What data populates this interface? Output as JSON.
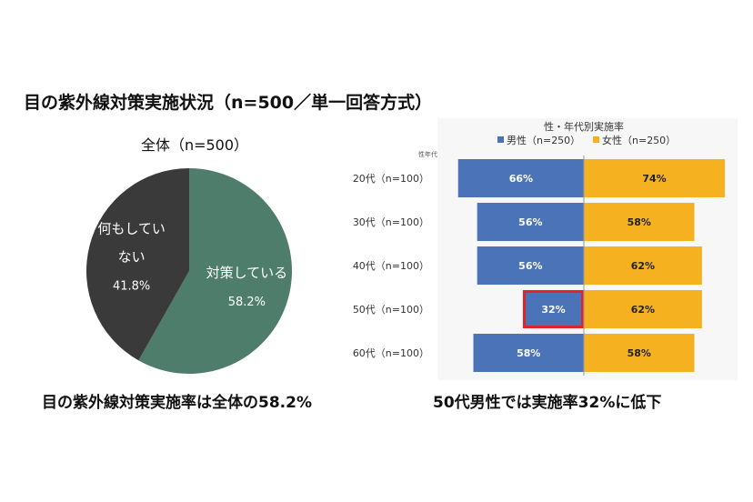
{
  "header": {
    "title": "目の紫外線対策実施状況（n=500／単一回答方式）"
  },
  "captions": {
    "left": "目の紫外線対策実施率は全体の58.2%",
    "right": "50代男性では実施率32%に低下"
  },
  "colors": {
    "pie_yes": "#4e7d6b",
    "pie_no": "#3a3a3a",
    "male": "#4a73b8",
    "female": "#f5b120",
    "highlight": "#e0242b"
  },
  "chart_data": [
    {
      "type": "pie",
      "title": "全体（n=500）",
      "slices": [
        {
          "label_lines": [
            "対策している"
          ],
          "value": 58.2,
          "value_label": "58.2%"
        },
        {
          "label_lines": [
            "何もしてい",
            "ない"
          ],
          "value": 41.8,
          "value_label": "41.8%"
        }
      ]
    },
    {
      "type": "bar",
      "orientation": "horizontal-diverging",
      "title": "性・年代別実施率",
      "axis_title": "性年代",
      "categories": [
        "20代（n=100）",
        "30代（n=100）",
        "40代（n=100）",
        "50代（n=100）",
        "60代（n=100）"
      ],
      "series": [
        {
          "name": "男性（n=250）",
          "values": [
            66,
            56,
            56,
            32,
            58
          ],
          "labels": [
            "66%",
            "56%",
            "56%",
            "32%",
            "58%"
          ]
        },
        {
          "name": "女性（n=250）",
          "values": [
            74,
            58,
            62,
            62,
            58
          ],
          "labels": [
            "74%",
            "58%",
            "62%",
            "62%",
            "58%"
          ]
        }
      ],
      "highlight": {
        "series": 0,
        "category": 3
      },
      "xlim": [
        0,
        100
      ]
    }
  ]
}
